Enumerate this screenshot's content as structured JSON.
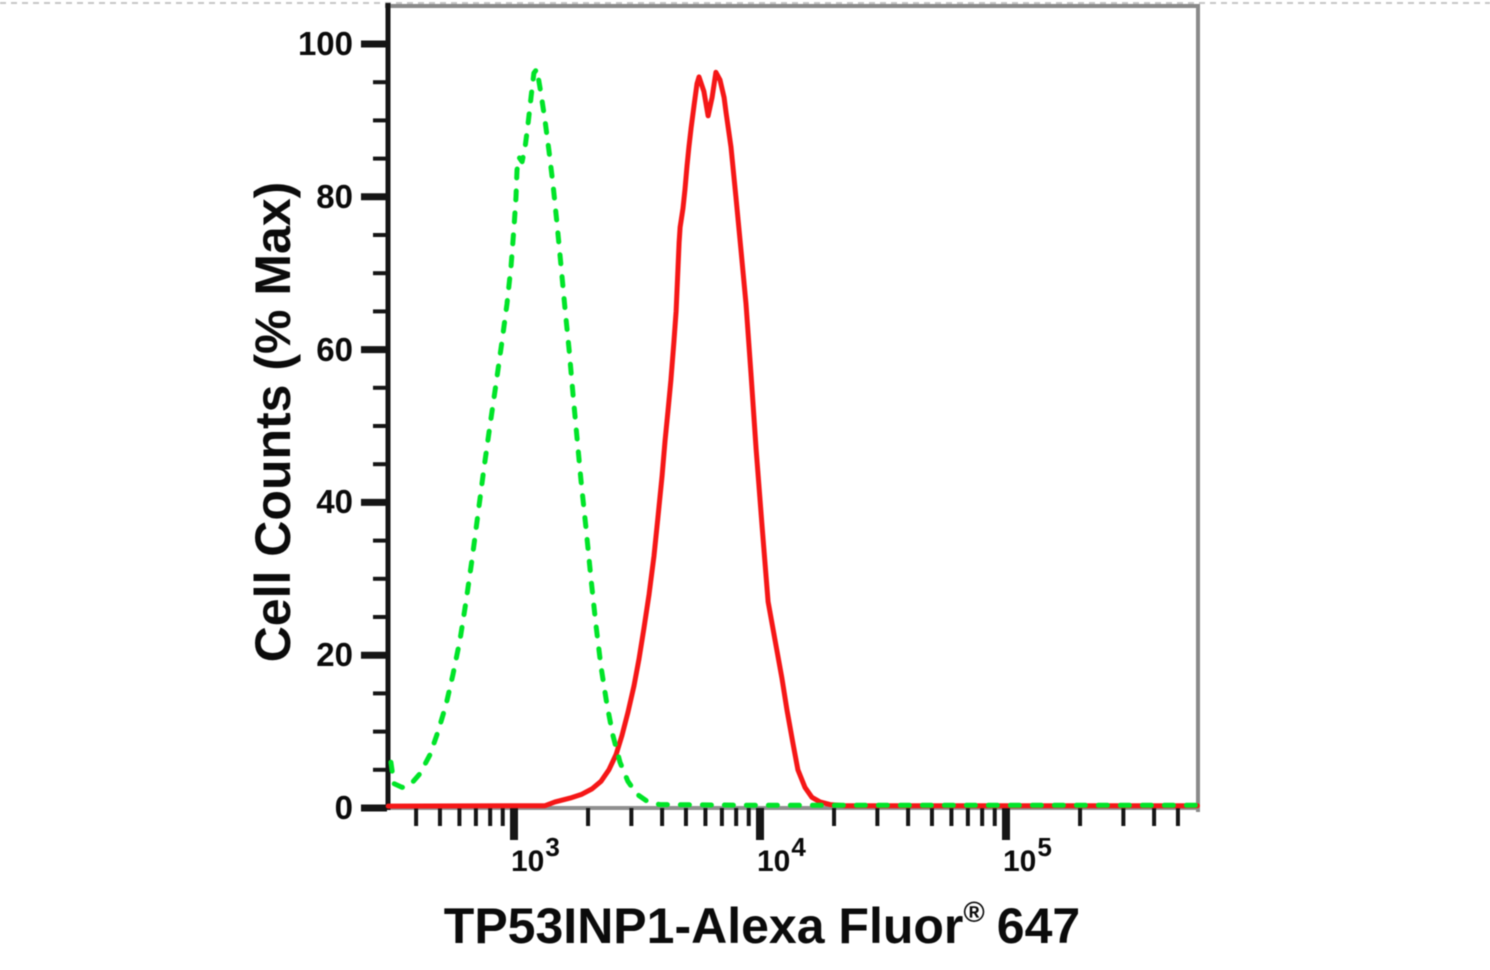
{
  "figure": {
    "y_axis_title": "Cell Counts (% Max)",
    "x_axis_title_main": "TP53INP1-Alexa Fluor",
    "x_axis_title_sup": "®",
    "x_axis_title_suffix": "647"
  },
  "colors": {
    "green_curve": "#00e428",
    "red_curve": "#f51717",
    "axis_black": "#151515",
    "frame_gray": "#8a8a8a",
    "x_axis_gray": "#8f8f8f",
    "top_dashed_line": "#c6c6c6",
    "text": "#0b0b0b",
    "background": "#ffffff"
  },
  "chart_data": {
    "type": "line",
    "title": "",
    "xlabel": "TP53INP1-Alexa Fluor® 647",
    "ylabel": "Cell Counts (% Max)",
    "legend": "none",
    "grid": false,
    "x_axis": {
      "scale": "log",
      "min": 308,
      "max": 600000,
      "major_ticks": [
        1000,
        10000,
        100000
      ],
      "major_tick_labels": [
        {
          "base": "10",
          "exp": "3",
          "value": 1000
        },
        {
          "base": "10",
          "exp": "4",
          "value": 10000
        },
        {
          "base": "10",
          "exp": "5",
          "value": 100000
        }
      ]
    },
    "y_axis": {
      "min": 0,
      "max": 100,
      "major_tick_step": 20,
      "minor_tick_step": 5,
      "major_tick_labels": [
        "0",
        "20",
        "40",
        "60",
        "80",
        "100"
      ]
    },
    "series": [
      {
        "name": "red-solid-curve",
        "style": "solid",
        "color": "#f51717",
        "points": [
          [
            308,
            0.25
          ],
          [
            1337,
            0.3
          ],
          [
            1468,
            0.8
          ],
          [
            1690,
            1.3
          ],
          [
            1888,
            1.8
          ],
          [
            2075,
            2.5
          ],
          [
            2258,
            3.5
          ],
          [
            2432,
            5
          ],
          [
            2600,
            7
          ],
          [
            2748,
            9.5
          ],
          [
            2904,
            12.5
          ],
          [
            3076,
            16
          ],
          [
            3221,
            19.5
          ],
          [
            3373,
            23.5
          ],
          [
            3540,
            28
          ],
          [
            3707,
            33
          ],
          [
            3846,
            38
          ],
          [
            3999,
            43.5
          ],
          [
            4111,
            48
          ],
          [
            4227,
            52
          ],
          [
            4345,
            56
          ],
          [
            4467,
            61
          ],
          [
            4560,
            65
          ],
          [
            4645,
            71
          ],
          [
            4688,
            74
          ],
          [
            4732,
            76
          ],
          [
            4865,
            78.5
          ],
          [
            4957,
            81
          ],
          [
            5050,
            84
          ],
          [
            5140,
            86.5
          ],
          [
            5248,
            89
          ],
          [
            5395,
            92
          ],
          [
            5546,
            94.8
          ],
          [
            5650,
            95.7
          ],
          [
            5915,
            93.8
          ],
          [
            6150,
            90.6
          ],
          [
            6385,
            93
          ],
          [
            6620,
            96.3
          ],
          [
            6875,
            95.3
          ],
          [
            7145,
            93
          ],
          [
            7280,
            91
          ],
          [
            7620,
            86.5
          ],
          [
            7980,
            80
          ],
          [
            8370,
            73
          ],
          [
            8770,
            66
          ],
          [
            9180,
            57
          ],
          [
            9640,
            47
          ],
          [
            10190,
            37
          ],
          [
            10790,
            27
          ],
          [
            11510,
            22
          ],
          [
            12280,
            17
          ],
          [
            12880,
            12.8
          ],
          [
            13610,
            8.5
          ],
          [
            14260,
            5
          ],
          [
            15240,
            2.7
          ],
          [
            16260,
            1.4
          ],
          [
            17540,
            0.8
          ],
          [
            19280,
            0.45
          ],
          [
            22180,
            0.3
          ],
          [
            600000,
            0.3
          ]
        ]
      },
      {
        "name": "green-dashed-curve",
        "style": "dashed",
        "color": "#00e428",
        "points": [
          [
            316,
            6
          ],
          [
            325,
            3.2
          ],
          [
            351,
            2.7
          ],
          [
            378,
            3
          ],
          [
            415,
            4.5
          ],
          [
            456,
            7
          ],
          [
            491,
            10
          ],
          [
            529,
            13.5
          ],
          [
            565,
            17.5
          ],
          [
            603,
            22
          ],
          [
            638,
            27
          ],
          [
            675,
            32.5
          ],
          [
            714,
            38.5
          ],
          [
            755,
            44.5
          ],
          [
            798,
            50
          ],
          [
            845,
            55.5
          ],
          [
            893,
            61
          ],
          [
            937,
            66
          ],
          [
            973,
            71
          ],
          [
            1000,
            76
          ],
          [
            1019,
            80
          ],
          [
            1028,
            83.5
          ],
          [
            1047,
            85.2
          ],
          [
            1079,
            84.6
          ],
          [
            1109,
            86.5
          ],
          [
            1140,
            89.5
          ],
          [
            1172,
            93
          ],
          [
            1205,
            96.2
          ],
          [
            1239,
            96.7
          ],
          [
            1288,
            93.5
          ],
          [
            1337,
            90
          ],
          [
            1387,
            86
          ],
          [
            1442,
            81.5
          ],
          [
            1496,
            76.5
          ],
          [
            1552,
            71
          ],
          [
            1611,
            65.5
          ],
          [
            1675,
            60
          ],
          [
            1738,
            54
          ],
          [
            1803,
            48.5
          ],
          [
            1871,
            43
          ],
          [
            1963,
            36.5
          ],
          [
            2056,
            30
          ],
          [
            2153,
            24
          ],
          [
            2258,
            18.5
          ],
          [
            2388,
            13.5
          ],
          [
            2523,
            9.5
          ],
          [
            2698,
            6
          ],
          [
            2904,
            3.5
          ],
          [
            3162,
            1.8
          ],
          [
            3508,
            0.8
          ],
          [
            3917,
            0.45
          ],
          [
            10000,
            0.35
          ],
          [
            600000,
            0.35
          ]
        ]
      }
    ]
  }
}
